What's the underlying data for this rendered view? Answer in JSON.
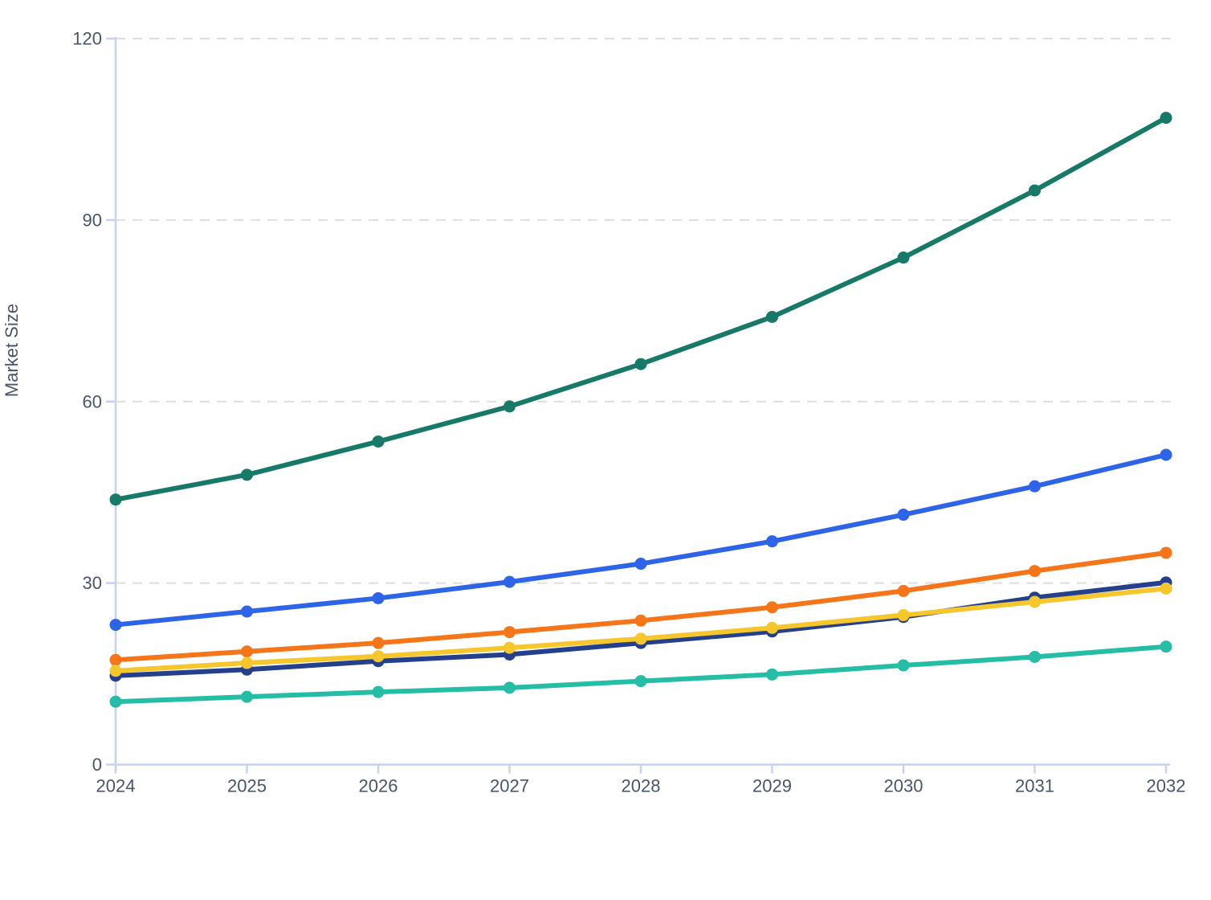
{
  "page": {
    "background": "#ffffff"
  },
  "chart_data": {
    "type": "line",
    "title": "",
    "xlabel": "",
    "ylabel": "Market Size",
    "x": [
      2024,
      2025,
      2026,
      2027,
      2028,
      2029,
      2030,
      2031,
      2032
    ],
    "x_ticks": [
      "2024",
      "2025",
      "2026",
      "2027",
      "2028",
      "2029",
      "2030",
      "2031",
      "2032"
    ],
    "y_ticks": [
      "0",
      "30",
      "60",
      "90",
      "120"
    ],
    "ylim": [
      0,
      120
    ],
    "grid": {
      "horizontal": true,
      "style": "dashed",
      "color": "#dcdee4"
    },
    "legend": {
      "visible": false
    },
    "axis_color": "#c7d2f0",
    "label_color": "#4a5568",
    "marker": "circle",
    "series": [
      {
        "name": "series-1-dark-green",
        "color": "#177a68",
        "values": [
          43.8,
          47.9,
          53.4,
          59.2,
          66.2,
          74.0,
          83.8,
          94.9,
          106.9
        ]
      },
      {
        "name": "series-2-blue",
        "color": "#2e65e8",
        "values": [
          23.1,
          25.3,
          27.5,
          30.2,
          33.2,
          36.9,
          41.3,
          46.0,
          51.2
        ]
      },
      {
        "name": "series-3-orange",
        "color": "#f67519",
        "values": [
          17.3,
          18.7,
          20.1,
          21.9,
          23.8,
          26.0,
          28.7,
          32.0,
          35.0
        ]
      },
      {
        "name": "series-4-navy",
        "color": "#24408d",
        "values": [
          14.7,
          15.7,
          17.1,
          18.2,
          20.1,
          22.0,
          24.4,
          27.6,
          30.1
        ]
      },
      {
        "name": "series-5-yellow",
        "color": "#f6c62d",
        "values": [
          15.5,
          16.8,
          17.9,
          19.3,
          20.8,
          22.6,
          24.7,
          26.9,
          29.1
        ]
      },
      {
        "name": "series-6-teal",
        "color": "#25bda6",
        "values": [
          10.4,
          11.2,
          12.0,
          12.7,
          13.8,
          14.9,
          16.4,
          17.8,
          19.5
        ]
      }
    ]
  }
}
